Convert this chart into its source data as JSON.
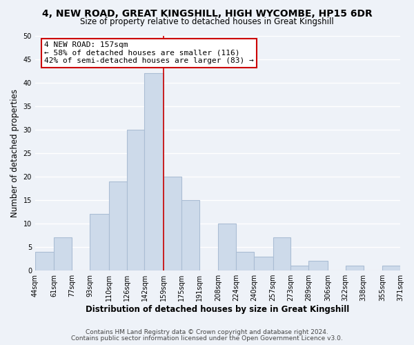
{
  "title": "4, NEW ROAD, GREAT KINGSHILL, HIGH WYCOMBE, HP15 6DR",
  "subtitle": "Size of property relative to detached houses in Great Kingshill",
  "xlabel": "Distribution of detached houses by size in Great Kingshill",
  "ylabel": "Number of detached properties",
  "bin_edges": [
    44,
    61,
    77,
    93,
    110,
    126,
    142,
    159,
    175,
    191,
    208,
    224,
    240,
    257,
    273,
    289,
    306,
    322,
    338,
    355,
    371
  ],
  "counts": [
    4,
    7,
    0,
    12,
    19,
    30,
    42,
    20,
    15,
    0,
    10,
    4,
    3,
    7,
    1,
    2,
    0,
    1,
    0,
    1
  ],
  "bar_color": "#cddaea",
  "bar_edge_color": "#aabdd4",
  "vline_x": 159,
  "vline_color": "#cc0000",
  "annotation_line1": "4 NEW ROAD: 157sqm",
  "annotation_line2": "← 58% of detached houses are smaller (116)",
  "annotation_line3": "42% of semi-detached houses are larger (83) →",
  "annotation_box_color": "#ffffff",
  "annotation_box_edge": "#cc0000",
  "ylim": [
    0,
    50
  ],
  "yticks": [
    0,
    5,
    10,
    15,
    20,
    25,
    30,
    35,
    40,
    45,
    50
  ],
  "tick_labels": [
    "44sqm",
    "61sqm",
    "77sqm",
    "93sqm",
    "110sqm",
    "126sqm",
    "142sqm",
    "159sqm",
    "175sqm",
    "191sqm",
    "208sqm",
    "224sqm",
    "240sqm",
    "257sqm",
    "273sqm",
    "289sqm",
    "306sqm",
    "322sqm",
    "338sqm",
    "355sqm",
    "371sqm"
  ],
  "footer1": "Contains HM Land Registry data © Crown copyright and database right 2024.",
  "footer2": "Contains public sector information licensed under the Open Government Licence v3.0.",
  "bg_color": "#eef2f8",
  "grid_color": "#ffffff",
  "title_fontsize": 10,
  "subtitle_fontsize": 8.5,
  "axis_label_fontsize": 8.5,
  "tick_fontsize": 7,
  "annotation_fontsize": 8,
  "footer_fontsize": 6.5
}
